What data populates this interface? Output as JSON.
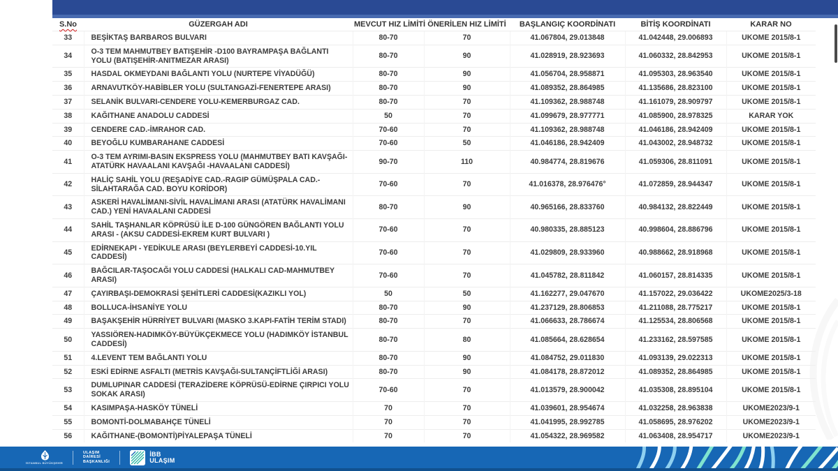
{
  "table": {
    "columns": [
      "S.No",
      "GÜZERGAH ADI",
      "MEVCUT HIZ LİMİTİ",
      "ÖNERİLEN HIZ LİMİTİ",
      "BAŞLANGIÇ KOORDİNATI",
      "BİTİŞ KOORDİNATI",
      "KARAR NO"
    ],
    "rows": [
      {
        "no": "33",
        "name": "BEŞİKTAŞ BARBAROS BULVARI",
        "current": "80-70",
        "proposed": "70",
        "start": "41.067804, 29.013848",
        "end": "41.042448, 29.006893",
        "decision": "UKOME 2015/8-1"
      },
      {
        "no": "34",
        "name": "O-3 TEM MAHMUTBEY BATIŞEHİR -D100 BAYRAMPAŞA BAĞLANTI YOLU (BATIŞEHİR-ANITMEZAR ARASI)",
        "current": "80-70",
        "proposed": "90",
        "start": "41.028919, 28.923693",
        "end": "41.060332, 28.842953",
        "decision": "UKOME 2015/8-1"
      },
      {
        "no": "35",
        "name": "HASDAL OKMEYDANI BAĞLANTI YOLU (NURTEPE VİYADÜĞÜ)",
        "current": "80-70",
        "proposed": "90",
        "start": "41.056704, 28.958871",
        "end": "41.095303, 28.963540",
        "decision": "UKOME 2015/8-1"
      },
      {
        "no": "36",
        "name": "ARNAVUTKÖY-HABİBLER YOLU (SULTANGAZİ-FENERTEPE ARASI)",
        "current": "80-70",
        "proposed": "90",
        "start": "41.089352, 28.864985",
        "end": "41.135686, 28.823100",
        "decision": "UKOME 2015/8-1"
      },
      {
        "no": "37",
        "name": "SELANİK BULVARI-CENDERE YOLU-KEMERBURGAZ CAD.",
        "current": "80-70",
        "proposed": "70",
        "start": "41.109362, 28.988748",
        "end": "41.161079, 28.909797",
        "decision": "UKOME 2015/8-1"
      },
      {
        "no": "38",
        "name": "KAĞITHANE ANADOLU CADDESİ",
        "current": "50",
        "proposed": "70",
        "start": "41.099679, 28.977771",
        "end": "41.085900, 28.978325",
        "decision": "KARAR YOK"
      },
      {
        "no": "39",
        "name": "CENDERE CAD.-İMRAHOR CAD.",
        "current": "70-60",
        "proposed": "70",
        "start": "41.109362, 28.988748",
        "end": "41.046186, 28.942409",
        "decision": "UKOME 2015/8-1"
      },
      {
        "no": "40",
        "name": "BEYOĞLU KUMBARAHANE CADDESİ",
        "current": "70-60",
        "proposed": "50",
        "start": "41.046186, 28.942409",
        "end": "41.043002, 28.948732",
        "decision": "UKOME 2015/8-1"
      },
      {
        "no": "41",
        "name": "O-3 TEM AYRIMI-BASIN EKSPRESS YOLU (MAHMUTBEY BATI KAVŞAĞI-ATATÜRK HAVAALANI KAVŞAĞI -HAVAALANI CADDESİ)",
        "current": "90-70",
        "proposed": "110",
        "start": "40.984774, 28.819676",
        "end": "41.059306, 28.811091",
        "decision": "UKOME 2015/8-1"
      },
      {
        "no": "42",
        "name": "HALİÇ SAHİL YOLU (REŞADİYE CAD.-RAGIP GÜMÜŞPALA CAD.-SİLAHTARAĞA CAD. BOYU KORİDOR)",
        "current": "70-60",
        "proposed": "70",
        "start": "41.016378, 28.976476°",
        "end": "41.072859, 28.944347",
        "decision": "UKOME 2015/8-1"
      },
      {
        "no": "43",
        "name": "ASKERİ HAVALİMANI-SİVİL HAVALİMANI ARASI (ATATÜRK HAVALİMANI CAD.) YENİ HAVAALANI CADDESİ",
        "current": "80-70",
        "proposed": "90",
        "start": "40.965166, 28.833760",
        "end": "40.984132, 28.822449",
        "decision": "UKOME 2015/8-1"
      },
      {
        "no": "44",
        "name": "SAHİL TAŞHANLAR KÖPRÜSÜ İLE D-100 GÜNGÖREN BAĞLANTI YOLU ARASI - (AKSU CADDESİ-EKREM KURT BULVARI )",
        "current": "70-60",
        "proposed": "70",
        "start": "40.980335, 28.885123",
        "end": "40.998604, 28.886796",
        "decision": "UKOME 2015/8-1"
      },
      {
        "no": "45",
        "name": "EDİRNEKAPI - YEDİKULE ARASI (BEYLERBEYİ CADDESİ-10.YIL CADDESİ)",
        "current": "70-60",
        "proposed": "70",
        "start": "41.029809, 28.933960",
        "end": "40.988662, 28.918968",
        "decision": "UKOME 2015/8-1"
      },
      {
        "no": "46",
        "name": "BAĞCILAR-TAŞOCAĞI YOLU CADDESİ (HALKALI CAD-MAHMUTBEY ARASI)",
        "current": "70-60",
        "proposed": "70",
        "start": "41.045782, 28.811842",
        "end": "41.060157, 28.814335",
        "decision": "UKOME 2015/8-1"
      },
      {
        "no": "47",
        "name": "ÇAYIRBAŞI-DEMOKRASİ ŞEHİTLERİ CADDESİ(KAZIKLI YOL)",
        "current": "50",
        "proposed": "50",
        "start": "41.162277, 29.047670",
        "end": "41.157022, 29.036422",
        "decision": "UKOME2025/3-18"
      },
      {
        "no": "48",
        "name": "BOLLUCA-İHSANİYE YOLU",
        "current": "80-70",
        "proposed": "90",
        "start": "41.237129, 28.806853",
        "end": "41.211088, 28.775217",
        "decision": "UKOME 2015/8-1"
      },
      {
        "no": "49",
        "name": "BAŞAKŞEHİR HÜRRİYET BULVARI (MASKO 3.KAPI-FATİH TERİM STADI)",
        "current": "80-70",
        "proposed": "70",
        "start": "41.066633, 28.786674",
        "end": "41.125534, 28.806568",
        "decision": "UKOME 2015/8-1"
      },
      {
        "no": "50",
        "name": "YASSIÖREN-HADIMKÖY-BÜYÜKÇEKMECE YOLU (HADIMKÖY İSTANBUL CADDESİ)",
        "current": "80-70",
        "proposed": "80",
        "start": "41.085664, 28.628654",
        "end": "41.233162, 28.597585",
        "decision": "UKOME 2015/8-1"
      },
      {
        "no": "51",
        "name": "4.LEVENT TEM BAĞLANTI YOLU",
        "current": "80-70",
        "proposed": "90",
        "start": "41.084752, 29.011830",
        "end": "41.093139, 29.022313",
        "decision": "UKOME 2015/8-1"
      },
      {
        "no": "52",
        "name": "ESKİ EDİRNE ASFALTI (METRİS KAVŞAĞI-SULTANÇİFTLİĞİ ARASI)",
        "current": "80-70",
        "proposed": "90",
        "start": "41.084178, 28.872012",
        "end": "41.089352, 28.864985",
        "decision": "UKOME 2015/8-1"
      },
      {
        "no": "53",
        "name": "DUMLUPINAR CADDESİ   (TERAZİDERE KÖPRÜSÜ-EDİRNE ÇIRPICI YOLU SOKAK ARASI)",
        "current": "70-60",
        "proposed": "70",
        "start": "41.013579, 28.900042",
        "end": "41.035308, 28.895104",
        "decision": "UKOME 2015/8-1"
      },
      {
        "no": "54",
        "name": "KASIMPAŞA-HASKÖY TÜNELİ",
        "current": "70",
        "proposed": "70",
        "start": "41.039601, 28.954674",
        "end": "41.032258, 28.963838",
        "decision": "UKOME2023/9-1"
      },
      {
        "no": "55",
        "name": "BOMONTİ-DOLMABAHÇE TÜNELİ",
        "current": "70",
        "proposed": "70",
        "start": "41.041995, 28.992785",
        "end": "41.058695, 28.976202",
        "decision": "UKOME2023/9-1"
      },
      {
        "no": "56",
        "name": "KAĞITHANE-(BOMONTİ)PİYALEPAŞA TÜNELİ",
        "current": "70",
        "proposed": "70",
        "start": "41.054322, 28.969582",
        "end": "41.063408, 28.954717",
        "decision": "UKOME2023/9-1"
      }
    ]
  },
  "footer": {
    "municipality_caption": "İSTANBUL BÜYÜKŞEHİR BELEDİYESİ",
    "department_line1": "ULAŞIM",
    "department_line2": "DAİRESİ",
    "department_line3": "BAŞKANLIĞI",
    "brand_line1": "İBB",
    "brand_line2": "ULAŞIM"
  },
  "colors": {
    "topbar": "#2a4a94",
    "topbar_edge": "#486ab0",
    "footer_bar": "#1767b5",
    "footer_edge": "#11518f",
    "pattern_teal": "#7fe3cf",
    "pattern_lightblue": "#8fd0f0",
    "sno_underline": "#cc1111"
  }
}
